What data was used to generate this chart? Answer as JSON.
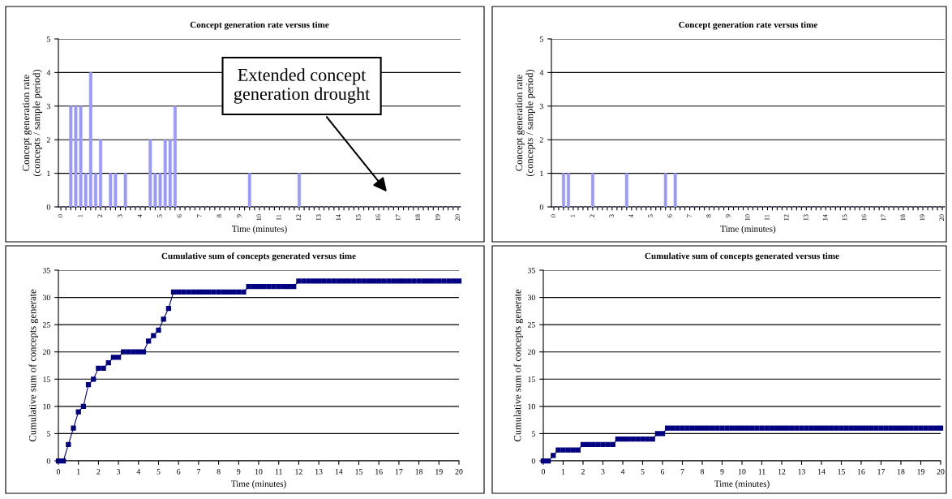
{
  "chart_data": [
    {
      "type": "bar",
      "title": "Concept generation rate versus time",
      "xlabel": "Time (minutes)",
      "ylabel": "Concept generation rate\n(concepts / sample period)",
      "color": "#9999ff",
      "ylim": [
        0,
        5
      ],
      "yticks": [
        0,
        1,
        2,
        3,
        4,
        5
      ],
      "grid": "y",
      "annotations": [
        "Extended concept\ngeneration drought"
      ],
      "categories": [
        "0",
        null,
        null,
        null,
        "1",
        null,
        null,
        null,
        "2",
        null,
        null,
        null,
        "3",
        null,
        null,
        null,
        "4",
        null,
        null,
        null,
        "5",
        null,
        null,
        null,
        "6",
        null,
        null,
        null,
        "7",
        null,
        null,
        null,
        "8",
        null,
        null,
        null,
        "9",
        null,
        null,
        null,
        "10",
        null,
        null,
        null,
        "11",
        null,
        null,
        null,
        "12",
        null,
        null,
        null,
        "13",
        null,
        null,
        null,
        "14",
        null,
        null,
        null,
        "15",
        null,
        null,
        null,
        "16",
        null,
        null,
        null,
        "17",
        null,
        null,
        null,
        "18",
        null,
        null,
        null,
        "19",
        null,
        null,
        null,
        "20"
      ],
      "values": [
        0,
        0,
        3,
        3,
        3,
        1,
        4,
        1,
        2,
        0,
        1,
        1,
        0,
        1,
        0,
        0,
        0,
        0,
        2,
        1,
        1,
        2,
        2,
        3,
        0,
        0,
        0,
        0,
        0,
        0,
        0,
        0,
        0,
        0,
        0,
        0,
        0,
        0,
        1,
        0,
        0,
        0,
        0,
        0,
        0,
        0,
        0,
        0,
        1,
        0,
        0,
        0,
        0,
        0,
        0,
        0,
        0,
        0,
        0,
        0,
        0,
        0,
        0,
        0,
        0,
        0,
        0,
        0,
        0,
        0,
        0,
        0,
        0,
        0,
        0,
        0,
        0,
        0,
        0,
        0,
        0
      ]
    },
    {
      "type": "bar",
      "title": "Concept generation rate versus time",
      "xlabel": "Time (minutes)",
      "ylabel": "Concept generation rate\n(concepts / sample period)",
      "color": "#9999ff",
      "ylim": [
        0,
        5
      ],
      "yticks": [
        0,
        1,
        2,
        3,
        4,
        5
      ],
      "grid": "y",
      "categories": [
        "0",
        null,
        null,
        null,
        "1",
        null,
        null,
        null,
        "2",
        null,
        null,
        null,
        "3",
        null,
        null,
        null,
        "4",
        null,
        null,
        null,
        "5",
        null,
        null,
        null,
        "6",
        null,
        null,
        null,
        "7",
        null,
        null,
        null,
        "8",
        null,
        null,
        null,
        "9",
        null,
        null,
        null,
        "10",
        null,
        null,
        null,
        "11",
        null,
        null,
        null,
        "12",
        null,
        null,
        null,
        "13",
        null,
        null,
        null,
        "14",
        null,
        null,
        null,
        "15",
        null,
        null,
        null,
        "16",
        null,
        null,
        null,
        "17",
        null,
        null,
        null,
        "18",
        null,
        null,
        null,
        "19",
        null,
        null,
        null,
        "20"
      ],
      "values": [
        0,
        0,
        1,
        1,
        0,
        0,
        0,
        0,
        1,
        0,
        0,
        0,
        0,
        0,
        0,
        1,
        0,
        0,
        0,
        0,
        0,
        0,
        0,
        1,
        0,
        1,
        0,
        0,
        0,
        0,
        0,
        0,
        0,
        0,
        0,
        0,
        0,
        0,
        0,
        0,
        0,
        0,
        0,
        0,
        0,
        0,
        0,
        0,
        0,
        0,
        0,
        0,
        0,
        0,
        0,
        0,
        0,
        0,
        0,
        0,
        0,
        0,
        0,
        0,
        0,
        0,
        0,
        0,
        0,
        0,
        0,
        0,
        0,
        0,
        0,
        0,
        0,
        0,
        0,
        0,
        0
      ]
    },
    {
      "type": "line",
      "title": "Cumulative sum of concepts generated versus time",
      "xlabel": "Time (minutes)",
      "ylabel": "Cumulative sum of concepts generate",
      "color": "#000080",
      "marker": "square",
      "line_style": "solid",
      "xlim": [
        0,
        20
      ],
      "xticks": [
        0,
        1,
        2,
        3,
        4,
        5,
        6,
        7,
        8,
        9,
        10,
        11,
        12,
        13,
        14,
        15,
        16,
        17,
        18,
        19,
        20
      ],
      "ylim": [
        0,
        35
      ],
      "yticks": [
        0,
        5,
        10,
        15,
        20,
        25,
        30,
        35
      ],
      "grid": "y",
      "x": [
        0,
        0.25,
        0.5,
        0.75,
        1,
        1.25,
        1.5,
        1.75,
        2,
        2.25,
        2.5,
        2.75,
        3,
        3.25,
        3.5,
        3.75,
        4,
        4.25,
        4.5,
        4.75,
        5,
        5.25,
        5.5,
        5.75,
        6,
        6.25,
        6.5,
        6.75,
        7,
        7.25,
        7.5,
        7.75,
        8,
        8.25,
        8.5,
        8.75,
        9,
        9.25,
        9.5,
        9.75,
        10,
        10.25,
        10.5,
        10.75,
        11,
        11.25,
        11.5,
        11.75,
        12,
        12.25,
        12.5,
        12.75,
        13,
        13.25,
        13.5,
        13.75,
        14,
        14.25,
        14.5,
        14.75,
        15,
        15.25,
        15.5,
        15.75,
        16,
        16.25,
        16.5,
        16.75,
        17,
        17.25,
        17.5,
        17.75,
        18,
        18.25,
        18.5,
        18.75,
        19,
        19.25,
        19.5,
        19.75,
        20
      ],
      "values": [
        0,
        0,
        3,
        6,
        9,
        10,
        14,
        15,
        17,
        17,
        18,
        19,
        19,
        20,
        20,
        20,
        20,
        20,
        22,
        23,
        24,
        26,
        28,
        31,
        31,
        31,
        31,
        31,
        31,
        31,
        31,
        31,
        31,
        31,
        31,
        31,
        31,
        31,
        32,
        32,
        32,
        32,
        32,
        32,
        32,
        32,
        32,
        32,
        33,
        33,
        33,
        33,
        33,
        33,
        33,
        33,
        33,
        33,
        33,
        33,
        33,
        33,
        33,
        33,
        33,
        33,
        33,
        33,
        33,
        33,
        33,
        33,
        33,
        33,
        33,
        33,
        33,
        33,
        33,
        33,
        33
      ]
    },
    {
      "type": "line",
      "title": "Cumulative sum of concepts generated versus time",
      "xlabel": "Time (minutes)",
      "ylabel": "Cumulative sum of concepts generate",
      "color": "#000080",
      "marker": "square",
      "line_style": "solid",
      "xlim": [
        0,
        20
      ],
      "xticks": [
        0,
        1,
        2,
        3,
        4,
        5,
        6,
        7,
        8,
        9,
        10,
        11,
        12,
        13,
        14,
        15,
        16,
        17,
        18,
        19,
        20
      ],
      "ylim": [
        0,
        35
      ],
      "yticks": [
        0,
        5,
        10,
        15,
        20,
        25,
        30,
        35
      ],
      "grid": "y",
      "x": [
        0,
        0.25,
        0.5,
        0.75,
        1,
        1.25,
        1.5,
        1.75,
        2,
        2.25,
        2.5,
        2.75,
        3,
        3.25,
        3.5,
        3.75,
        4,
        4.25,
        4.5,
        4.75,
        5,
        5.25,
        5.5,
        5.75,
        6,
        6.25,
        6.5,
        6.75,
        7,
        7.25,
        7.5,
        7.75,
        8,
        8.25,
        8.5,
        8.75,
        9,
        9.25,
        9.5,
        9.75,
        10,
        10.25,
        10.5,
        10.75,
        11,
        11.25,
        11.5,
        11.75,
        12,
        12.25,
        12.5,
        12.75,
        13,
        13.25,
        13.5,
        13.75,
        14,
        14.25,
        14.5,
        14.75,
        15,
        15.25,
        15.5,
        15.75,
        16,
        16.25,
        16.5,
        16.75,
        17,
        17.25,
        17.5,
        17.75,
        18,
        18.25,
        18.5,
        18.75,
        19,
        19.25,
        19.5,
        19.75,
        20
      ],
      "values": [
        0,
        0,
        1,
        2,
        2,
        2,
        2,
        2,
        3,
        3,
        3,
        3,
        3,
        3,
        3,
        4,
        4,
        4,
        4,
        4,
        4,
        4,
        4,
        5,
        5,
        6,
        6,
        6,
        6,
        6,
        6,
        6,
        6,
        6,
        6,
        6,
        6,
        6,
        6,
        6,
        6,
        6,
        6,
        6,
        6,
        6,
        6,
        6,
        6,
        6,
        6,
        6,
        6,
        6,
        6,
        6,
        6,
        6,
        6,
        6,
        6,
        6,
        6,
        6,
        6,
        6,
        6,
        6,
        6,
        6,
        6,
        6,
        6,
        6,
        6,
        6,
        6,
        6,
        6,
        6,
        6
      ]
    }
  ]
}
